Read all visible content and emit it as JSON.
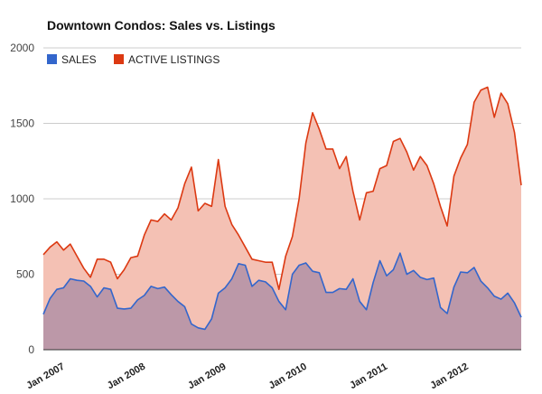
{
  "chart_data": {
    "type": "area",
    "title": "Downtown Condos: Sales vs. Listings",
    "xlabel": "",
    "ylabel": "",
    "ylim": [
      0,
      2000
    ],
    "yticks": [
      0,
      500,
      1000,
      1500,
      2000
    ],
    "x_tick_labels": [
      "Jan 2007",
      "Jan 2008",
      "Jan 2009",
      "Jan 2010",
      "Jan 2011",
      "Jan 2012"
    ],
    "x_start": "Jan 2007",
    "legend_position": "top-left",
    "grid": true,
    "series": [
      {
        "name": "SALES",
        "color": "#3366cc",
        "fill_color": "#b290a6",
        "values": [
          235,
          340,
          400,
          410,
          470,
          460,
          455,
          420,
          350,
          410,
          400,
          275,
          270,
          275,
          330,
          360,
          420,
          405,
          415,
          365,
          320,
          285,
          170,
          145,
          135,
          205,
          375,
          410,
          470,
          570,
          560,
          420,
          460,
          450,
          410,
          320,
          265,
          500,
          560,
          575,
          520,
          510,
          380,
          380,
          405,
          400,
          470,
          320,
          265,
          445,
          590,
          490,
          530,
          640,
          500,
          525,
          480,
          465,
          475,
          280,
          240,
          415,
          515,
          510,
          545,
          455,
          410,
          355,
          335,
          375,
          310,
          215
        ]
      },
      {
        "name": "ACTIVE LISTINGS",
        "color": "#dc3912",
        "fill_color": "#f4c1b4",
        "values": [
          630,
          680,
          715,
          660,
          700,
          620,
          540,
          480,
          600,
          600,
          580,
          470,
          530,
          610,
          620,
          760,
          860,
          850,
          900,
          860,
          940,
          1100,
          1210,
          920,
          970,
          950,
          1260,
          950,
          830,
          760,
          680,
          600,
          590,
          580,
          580,
          400,
          620,
          750,
          1000,
          1370,
          1570,
          1460,
          1330,
          1330,
          1200,
          1280,
          1050,
          860,
          1040,
          1050,
          1200,
          1220,
          1380,
          1400,
          1310,
          1190,
          1280,
          1220,
          1100,
          950,
          820,
          1150,
          1270,
          1360,
          1640,
          1720,
          1740,
          1540,
          1700,
          1630,
          1440,
          1090
        ]
      }
    ]
  }
}
